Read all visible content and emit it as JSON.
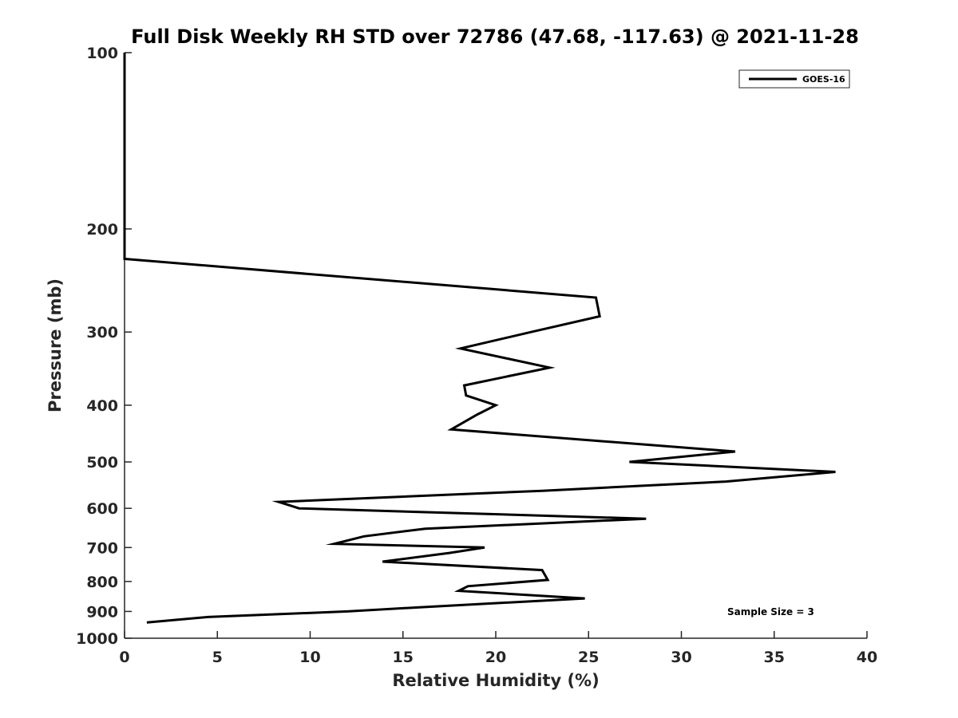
{
  "chart_data": {
    "type": "line",
    "title": "Full Disk Weekly RH STD over 72786 (47.68, -117.63) @ 2021-11-28",
    "xlabel": "Relative Humidity (%)",
    "ylabel": "Pressure (mb)",
    "xlim": [
      0,
      40
    ],
    "ylim": [
      100,
      1000
    ],
    "yscale": "log",
    "y_reversed": true,
    "grid": false,
    "legend_position": "top-right",
    "x_ticks": [
      "0",
      "5",
      "10",
      "15",
      "20",
      "25",
      "30",
      "35",
      "40"
    ],
    "y_ticks": [
      "100",
      "200",
      "300",
      "400",
      "500",
      "600",
      "700",
      "800",
      "900",
      "1000"
    ],
    "series": [
      {
        "name": "GOES-16",
        "color": "#000000",
        "points": [
          {
            "x": 0,
            "y": 100
          },
          {
            "x": 0,
            "y": 150
          },
          {
            "x": 0,
            "y": 200
          },
          {
            "x": 0,
            "y": 225
          },
          {
            "x": 25.4,
            "y": 262
          },
          {
            "x": 25.6,
            "y": 282
          },
          {
            "x": 21.9,
            "y": 300
          },
          {
            "x": 18.1,
            "y": 320
          },
          {
            "x": 22.9,
            "y": 345
          },
          {
            "x": 18.3,
            "y": 370
          },
          {
            "x": 18.4,
            "y": 385
          },
          {
            "x": 20.0,
            "y": 400
          },
          {
            "x": 19.0,
            "y": 415
          },
          {
            "x": 17.6,
            "y": 440
          },
          {
            "x": 32.9,
            "y": 480
          },
          {
            "x": 27.2,
            "y": 500
          },
          {
            "x": 38.3,
            "y": 520
          },
          {
            "x": 32.4,
            "y": 540
          },
          {
            "x": 22.5,
            "y": 560
          },
          {
            "x": 8.3,
            "y": 585
          },
          {
            "x": 9.4,
            "y": 600
          },
          {
            "x": 28.1,
            "y": 625
          },
          {
            "x": 16.2,
            "y": 650
          },
          {
            "x": 12.9,
            "y": 670
          },
          {
            "x": 11.3,
            "y": 690
          },
          {
            "x": 19.4,
            "y": 700
          },
          {
            "x": 17.5,
            "y": 715
          },
          {
            "x": 13.9,
            "y": 740
          },
          {
            "x": 22.5,
            "y": 765
          },
          {
            "x": 22.8,
            "y": 795
          },
          {
            "x": 18.5,
            "y": 815
          },
          {
            "x": 18.0,
            "y": 830
          },
          {
            "x": 24.8,
            "y": 855
          },
          {
            "x": 16.0,
            "y": 885
          },
          {
            "x": 12.0,
            "y": 900
          },
          {
            "x": 4.5,
            "y": 920
          },
          {
            "x": 1.2,
            "y": 940
          }
        ]
      }
    ],
    "annotations": [
      "Sample Size = 3"
    ]
  }
}
